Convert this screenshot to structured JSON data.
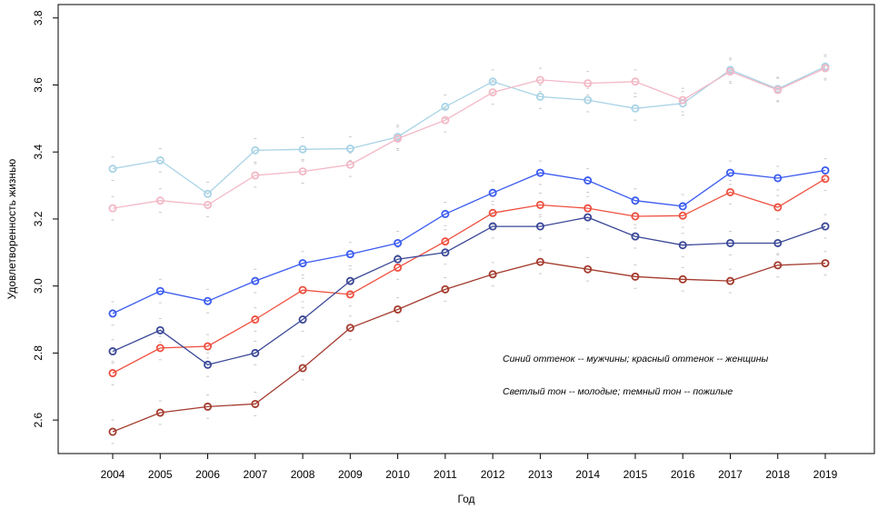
{
  "chart_data": {
    "type": "line",
    "title": "",
    "xlabel": "Год",
    "ylabel": "Удовлетворенность жизнью",
    "x": [
      2004,
      2005,
      2006,
      2007,
      2008,
      2009,
      2010,
      2011,
      2012,
      2013,
      2014,
      2015,
      2016,
      2017,
      2018,
      2019
    ],
    "yticks": [
      "2.6",
      "2.8",
      "3.0",
      "3.2",
      "3.4",
      "3.6",
      "3.8"
    ],
    "ylim": [
      2.5,
      3.84
    ],
    "grid": false,
    "annotations": [
      "Синий оттенок -- мужчины; красный оттенок -- женщины",
      "Светлый тон -- молодые; темный тон -- пожилые"
    ],
    "series": [
      {
        "color": "#a9d3e6",
        "values": [
          3.35,
          3.375,
          3.275,
          3.405,
          3.408,
          3.41,
          3.445,
          3.535,
          3.61,
          3.565,
          3.555,
          3.53,
          3.545,
          3.645,
          3.588,
          3.655
        ]
      },
      {
        "color": "#f2b8c6",
        "values": [
          3.232,
          3.255,
          3.242,
          3.33,
          3.342,
          3.362,
          3.44,
          3.495,
          3.578,
          3.615,
          3.605,
          3.61,
          3.555,
          3.64,
          3.585,
          3.65
        ]
      },
      {
        "color": "#3b5bf0",
        "values": [
          2.918,
          2.985,
          2.955,
          3.015,
          3.068,
          3.095,
          3.128,
          3.215,
          3.278,
          3.338,
          3.315,
          3.255,
          3.238,
          3.338,
          3.322,
          3.345
        ]
      },
      {
        "color": "#ee5040",
        "values": [
          2.74,
          2.815,
          2.82,
          2.9,
          2.988,
          2.975,
          3.055,
          3.133,
          3.218,
          3.242,
          3.232,
          3.208,
          3.21,
          3.28,
          3.235,
          3.32
        ]
      },
      {
        "color": "#3a4797",
        "values": [
          2.805,
          2.868,
          2.765,
          2.8,
          2.9,
          3.015,
          3.08,
          3.1,
          3.178,
          3.178,
          3.205,
          3.148,
          3.122,
          3.128,
          3.128,
          3.178
        ]
      },
      {
        "color": "#a33b2e",
        "values": [
          2.565,
          2.622,
          2.64,
          2.648,
          2.755,
          2.875,
          2.93,
          2.99,
          3.035,
          3.072,
          3.05,
          3.028,
          3.02,
          3.015,
          3.062,
          3.068
        ]
      }
    ]
  }
}
